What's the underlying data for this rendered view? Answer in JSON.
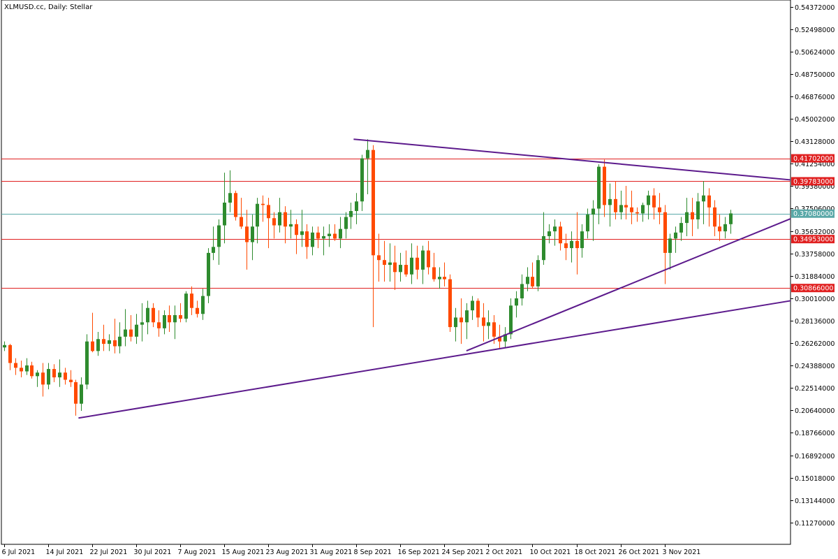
{
  "header": {
    "symbol": "XLMUSD.cc",
    "timeframe": "Daily",
    "description": "Stellar"
  },
  "chart_data": {
    "type": "candlestick",
    "ylim": [
      0.0945,
      0.5493
    ],
    "y_ticks": [
      "0.54372000",
      "0.52498000",
      "0.50624000",
      "0.48750000",
      "0.46876000",
      "0.45002000",
      "0.43128000",
      "0.41254000",
      "0.39380000",
      "0.37506000",
      "0.35632000",
      "0.33758000",
      "0.31884000",
      "0.30010000",
      "0.28136000",
      "0.26262000",
      "0.24388000",
      "0.22514000",
      "0.20640000",
      "0.18766000",
      "0.16892000",
      "0.15018000",
      "0.13144000",
      "0.11270000"
    ],
    "x_ticks": [
      {
        "index": 0,
        "label": "6 Jul 2021"
      },
      {
        "index": 8,
        "label": "14 Jul 2021"
      },
      {
        "index": 16,
        "label": "22 Jul 2021"
      },
      {
        "index": 24,
        "label": "30 Jul 2021"
      },
      {
        "index": 32,
        "label": "7 Aug 2021"
      },
      {
        "index": 40,
        "label": "15 Aug 2021"
      },
      {
        "index": 48,
        "label": "23 Aug 2021"
      },
      {
        "index": 56,
        "label": "31 Aug 2021"
      },
      {
        "index": 64,
        "label": "8 Sep 2021"
      },
      {
        "index": 72,
        "label": "16 Sep 2021"
      },
      {
        "index": 80,
        "label": "24 Sep 2021"
      },
      {
        "index": 88,
        "label": "2 Oct 2021"
      },
      {
        "index": 96,
        "label": "10 Oct 2021"
      },
      {
        "index": 104,
        "label": "18 Oct 2021"
      },
      {
        "index": 112,
        "label": "26 Oct 2021"
      },
      {
        "index": 120,
        "label": "3 Nov 2021"
      }
    ],
    "colors": {
      "up": "#2e8b2e",
      "down": "#ff4a00",
      "level": "#e02020",
      "current": "#5aa8a8",
      "trend": "#5c1a8c"
    },
    "levels": [
      {
        "price": 0.41702,
        "label": "0.41702000"
      },
      {
        "price": 0.39783,
        "label": "0.39783000"
      },
      {
        "price": 0.34953,
        "label": "0.34953000"
      },
      {
        "price": 0.30866,
        "label": "0.30866000"
      }
    ],
    "current_price": {
      "price": 0.3708,
      "label": "0.37080000"
    },
    "trendlines": [
      {
        "x1": 13.5,
        "y1": 0.2,
        "x2": 144.5,
        "y2": 0.298
      },
      {
        "x1": 84,
        "y1": 0.2562,
        "x2": 144.5,
        "y2": 0.3665
      },
      {
        "x1": 63.5,
        "y1": 0.433,
        "x2": 144.5,
        "y2": 0.399
      }
    ],
    "candles": [
      [
        0.259,
        0.264,
        0.256,
        0.261
      ],
      [
        0.261,
        0.262,
        0.24,
        0.246
      ],
      [
        0.246,
        0.25,
        0.236,
        0.242
      ],
      [
        0.242,
        0.248,
        0.234,
        0.239
      ],
      [
        0.239,
        0.25,
        0.236,
        0.244
      ],
      [
        0.244,
        0.247,
        0.233,
        0.235
      ],
      [
        0.235,
        0.24,
        0.226,
        0.238
      ],
      [
        0.238,
        0.246,
        0.218,
        0.228
      ],
      [
        0.228,
        0.246,
        0.224,
        0.241
      ],
      [
        0.241,
        0.245,
        0.23,
        0.234
      ],
      [
        0.234,
        0.249,
        0.226,
        0.238
      ],
      [
        0.238,
        0.242,
        0.228,
        0.232
      ],
      [
        0.232,
        0.24,
        0.226,
        0.23
      ],
      [
        0.23,
        0.232,
        0.202,
        0.212
      ],
      [
        0.212,
        0.234,
        0.206,
        0.228
      ],
      [
        0.228,
        0.27,
        0.224,
        0.264
      ],
      [
        0.264,
        0.288,
        0.255,
        0.256
      ],
      [
        0.256,
        0.272,
        0.252,
        0.266
      ],
      [
        0.266,
        0.278,
        0.256,
        0.262
      ],
      [
        0.262,
        0.27,
        0.256,
        0.265
      ],
      [
        0.265,
        0.283,
        0.254,
        0.26
      ],
      [
        0.26,
        0.28,
        0.254,
        0.268
      ],
      [
        0.268,
        0.291,
        0.26,
        0.274
      ],
      [
        0.274,
        0.286,
        0.264,
        0.268
      ],
      [
        0.268,
        0.287,
        0.262,
        0.278
      ],
      [
        0.278,
        0.296,
        0.264,
        0.28
      ],
      [
        0.28,
        0.298,
        0.27,
        0.292
      ],
      [
        0.292,
        0.296,
        0.276,
        0.28
      ],
      [
        0.28,
        0.29,
        0.268,
        0.275
      ],
      [
        0.275,
        0.29,
        0.27,
        0.286
      ],
      [
        0.286,
        0.294,
        0.272,
        0.28
      ],
      [
        0.28,
        0.294,
        0.266,
        0.286
      ],
      [
        0.286,
        0.296,
        0.28,
        0.283
      ],
      [
        0.283,
        0.306,
        0.28,
        0.304
      ],
      [
        0.304,
        0.31,
        0.286,
        0.292
      ],
      [
        0.292,
        0.298,
        0.284,
        0.287
      ],
      [
        0.287,
        0.308,
        0.282,
        0.302
      ],
      [
        0.302,
        0.342,
        0.296,
        0.338
      ],
      [
        0.338,
        0.36,
        0.332,
        0.343
      ],
      [
        0.343,
        0.366,
        0.328,
        0.361
      ],
      [
        0.361,
        0.405,
        0.346,
        0.38
      ],
      [
        0.38,
        0.407,
        0.372,
        0.388
      ],
      [
        0.388,
        0.39,
        0.365,
        0.368
      ],
      [
        0.368,
        0.384,
        0.358,
        0.36
      ],
      [
        0.36,
        0.374,
        0.324,
        0.347
      ],
      [
        0.347,
        0.37,
        0.332,
        0.36
      ],
      [
        0.36,
        0.384,
        0.346,
        0.379
      ],
      [
        0.379,
        0.386,
        0.364,
        0.378
      ],
      [
        0.378,
        0.384,
        0.342,
        0.367
      ],
      [
        0.367,
        0.372,
        0.35,
        0.361
      ],
      [
        0.361,
        0.384,
        0.355,
        0.372
      ],
      [
        0.372,
        0.377,
        0.346,
        0.36
      ],
      [
        0.36,
        0.374,
        0.35,
        0.362
      ],
      [
        0.362,
        0.366,
        0.337,
        0.353
      ],
      [
        0.353,
        0.374,
        0.343,
        0.356
      ],
      [
        0.356,
        0.362,
        0.333,
        0.343
      ],
      [
        0.343,
        0.36,
        0.336,
        0.355
      ],
      [
        0.355,
        0.36,
        0.342,
        0.35
      ],
      [
        0.35,
        0.36,
        0.336,
        0.352
      ],
      [
        0.352,
        0.362,
        0.343,
        0.354
      ],
      [
        0.354,
        0.362,
        0.348,
        0.35
      ],
      [
        0.35,
        0.368,
        0.342,
        0.358
      ],
      [
        0.358,
        0.372,
        0.35,
        0.368
      ],
      [
        0.368,
        0.38,
        0.358,
        0.373
      ],
      [
        0.373,
        0.388,
        0.362,
        0.381
      ],
      [
        0.381,
        0.42,
        0.373,
        0.417
      ],
      [
        0.417,
        0.433,
        0.387,
        0.424
      ],
      [
        0.424,
        0.428,
        0.276,
        0.336
      ],
      [
        0.336,
        0.354,
        0.314,
        0.332
      ],
      [
        0.332,
        0.348,
        0.314,
        0.328
      ],
      [
        0.328,
        0.346,
        0.314,
        0.33
      ],
      [
        0.33,
        0.344,
        0.307,
        0.322
      ],
      [
        0.322,
        0.338,
        0.314,
        0.328
      ],
      [
        0.328,
        0.34,
        0.318,
        0.32
      ],
      [
        0.32,
        0.346,
        0.312,
        0.334
      ],
      [
        0.334,
        0.344,
        0.316,
        0.324
      ],
      [
        0.324,
        0.344,
        0.312,
        0.34
      ],
      [
        0.34,
        0.348,
        0.32,
        0.326
      ],
      [
        0.326,
        0.338,
        0.314,
        0.316
      ],
      [
        0.316,
        0.326,
        0.308,
        0.318
      ],
      [
        0.318,
        0.33,
        0.31,
        0.316
      ],
      [
        0.316,
        0.32,
        0.272,
        0.276
      ],
      [
        0.276,
        0.292,
        0.264,
        0.284
      ],
      [
        0.284,
        0.3,
        0.262,
        0.28
      ],
      [
        0.28,
        0.296,
        0.266,
        0.29
      ],
      [
        0.29,
        0.302,
        0.282,
        0.298
      ],
      [
        0.298,
        0.3,
        0.276,
        0.284
      ],
      [
        0.284,
        0.296,
        0.264,
        0.277
      ],
      [
        0.277,
        0.29,
        0.266,
        0.28
      ],
      [
        0.28,
        0.286,
        0.262,
        0.268
      ],
      [
        0.268,
        0.278,
        0.258,
        0.264
      ],
      [
        0.264,
        0.276,
        0.259,
        0.27
      ],
      [
        0.27,
        0.3,
        0.266,
        0.294
      ],
      [
        0.294,
        0.306,
        0.284,
        0.3
      ],
      [
        0.3,
        0.32,
        0.294,
        0.312
      ],
      [
        0.312,
        0.326,
        0.306,
        0.318
      ],
      [
        0.318,
        0.33,
        0.308,
        0.31
      ],
      [
        0.31,
        0.336,
        0.306,
        0.332
      ],
      [
        0.332,
        0.372,
        0.328,
        0.352
      ],
      [
        0.352,
        0.362,
        0.346,
        0.356
      ],
      [
        0.356,
        0.366,
        0.344,
        0.36
      ],
      [
        0.36,
        0.364,
        0.34,
        0.346
      ],
      [
        0.346,
        0.354,
        0.332,
        0.342
      ],
      [
        0.342,
        0.356,
        0.33,
        0.348
      ],
      [
        0.348,
        0.372,
        0.32,
        0.342
      ],
      [
        0.342,
        0.362,
        0.334,
        0.356
      ],
      [
        0.356,
        0.375,
        0.35,
        0.37
      ],
      [
        0.37,
        0.382,
        0.348,
        0.375
      ],
      [
        0.375,
        0.412,
        0.362,
        0.41
      ],
      [
        0.41,
        0.416,
        0.368,
        0.378
      ],
      [
        0.378,
        0.396,
        0.36,
        0.383
      ],
      [
        0.383,
        0.398,
        0.366,
        0.372
      ],
      [
        0.372,
        0.39,
        0.366,
        0.378
      ],
      [
        0.378,
        0.394,
        0.366,
        0.376
      ],
      [
        0.376,
        0.39,
        0.362,
        0.372
      ],
      [
        0.372,
        0.376,
        0.364,
        0.371
      ],
      [
        0.371,
        0.38,
        0.364,
        0.378
      ],
      [
        0.378,
        0.39,
        0.366,
        0.386
      ],
      [
        0.386,
        0.392,
        0.366,
        0.376
      ],
      [
        0.376,
        0.388,
        0.362,
        0.372
      ],
      [
        0.372,
        0.378,
        0.312,
        0.338
      ],
      [
        0.338,
        0.354,
        0.324,
        0.35
      ],
      [
        0.35,
        0.36,
        0.338,
        0.355
      ],
      [
        0.355,
        0.368,
        0.348,
        0.363
      ],
      [
        0.363,
        0.384,
        0.352,
        0.372
      ],
      [
        0.372,
        0.384,
        0.352,
        0.366
      ],
      [
        0.366,
        0.388,
        0.358,
        0.381
      ],
      [
        0.381,
        0.398,
        0.362,
        0.386
      ],
      [
        0.386,
        0.392,
        0.36,
        0.376
      ],
      [
        0.376,
        0.382,
        0.352,
        0.36
      ],
      [
        0.36,
        0.37,
        0.348,
        0.356
      ],
      [
        0.356,
        0.368,
        0.35,
        0.362
      ],
      [
        0.362,
        0.374,
        0.354,
        0.371
      ]
    ]
  }
}
